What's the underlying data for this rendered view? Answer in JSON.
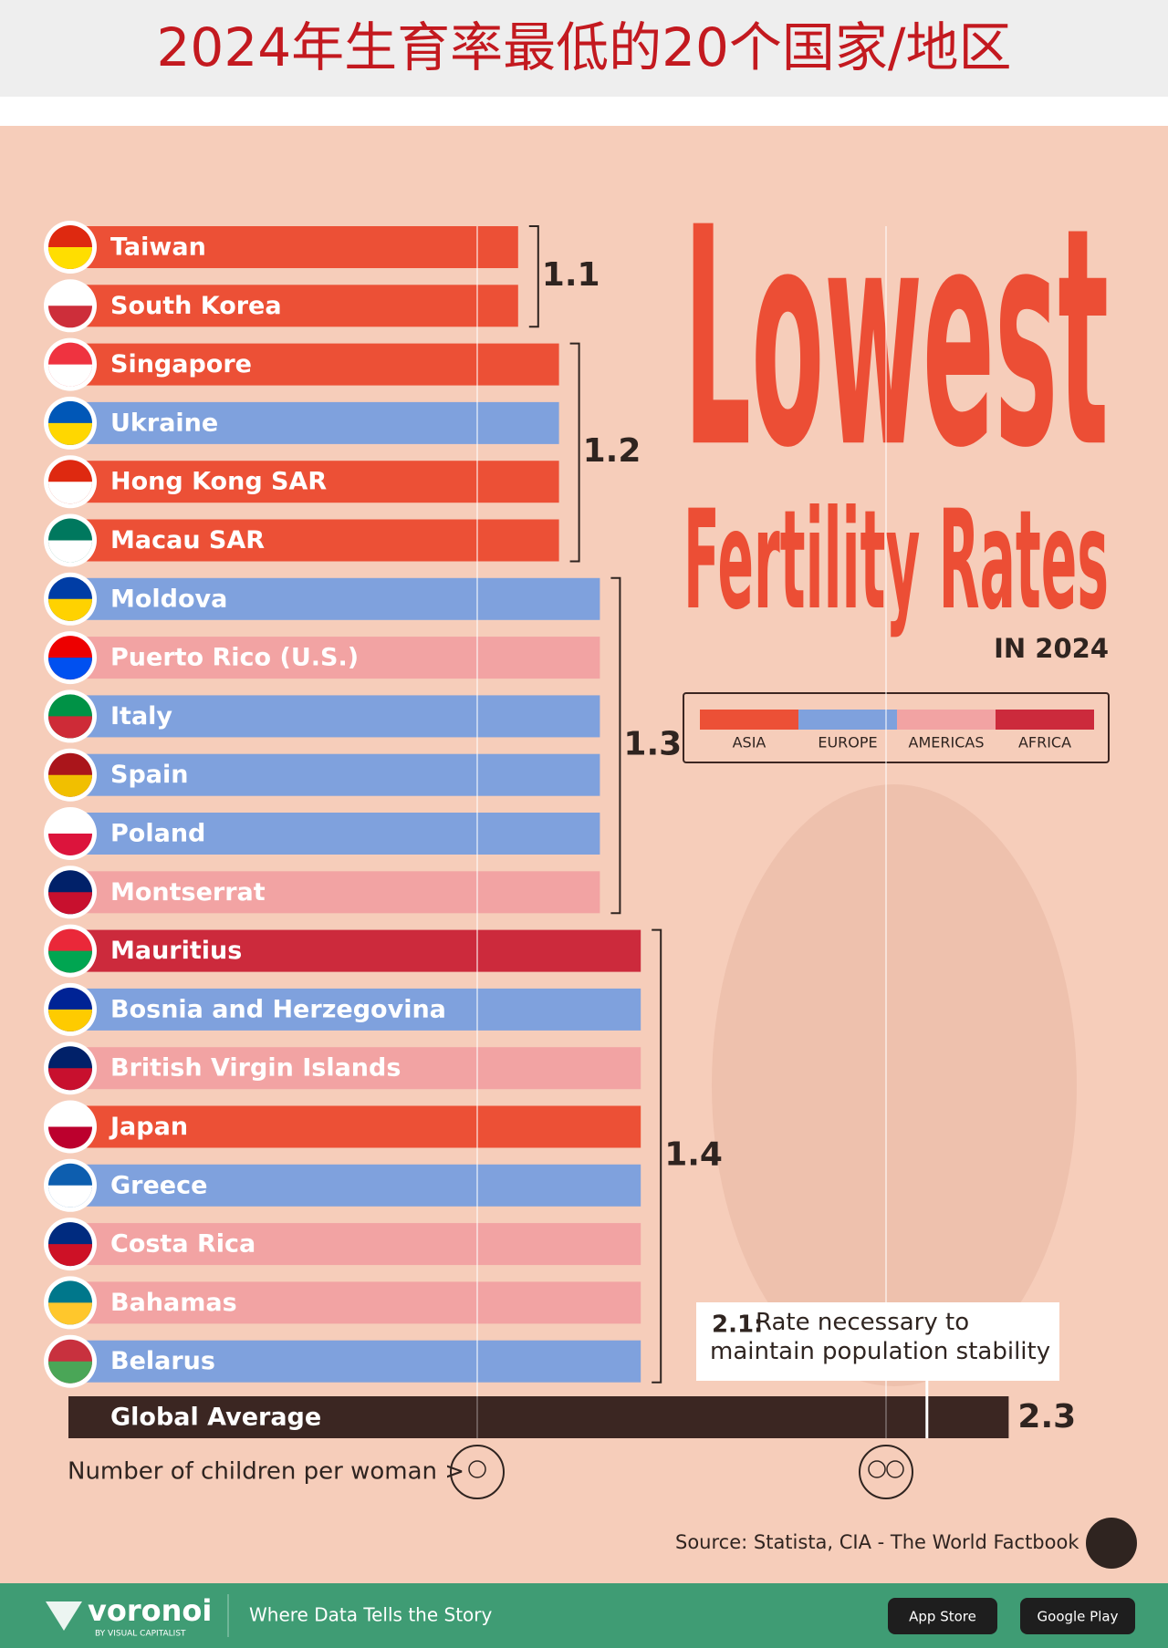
{
  "header": {
    "title": "2024年生育率最低的20个国家/地区"
  },
  "chart_data": {
    "type": "bar",
    "title": "Lowest",
    "title_line2": "Fertility Rates",
    "subtitle": "IN 2024",
    "categories": [
      "Taiwan",
      "South Korea",
      "Singapore",
      "Ukraine",
      "Hong Kong SAR",
      "Macau SAR",
      "Moldova",
      "Puerto Rico (U.S.)",
      "Italy",
      "Spain",
      "Poland",
      "Montserrat",
      "Mauritius",
      "Bosnia and Herzegovina",
      "British Virgin Islands",
      "Japan",
      "Greece",
      "Costa Rica",
      "Bahamas",
      "Belarus"
    ],
    "values": [
      1.1,
      1.1,
      1.2,
      1.2,
      1.2,
      1.2,
      1.3,
      1.3,
      1.3,
      1.3,
      1.3,
      1.3,
      1.4,
      1.4,
      1.4,
      1.4,
      1.4,
      1.4,
      1.4,
      1.4
    ],
    "regions": [
      "ASIA",
      "ASIA",
      "ASIA",
      "EUROPE",
      "ASIA",
      "ASIA",
      "EUROPE",
      "AMERICAS",
      "EUROPE",
      "EUROPE",
      "EUROPE",
      "AMERICAS",
      "AFRICA",
      "EUROPE",
      "AMERICAS",
      "ASIA",
      "EUROPE",
      "AMERICAS",
      "AMERICAS",
      "EUROPE"
    ],
    "legend": [
      {
        "name": "ASIA",
        "color": "#ec5036"
      },
      {
        "name": "EUROPE",
        "color": "#7fa1dd"
      },
      {
        "name": "AMERICAS",
        "color": "#f2a3a3"
      },
      {
        "name": "AFRICA",
        "color": "#cc2a3c"
      }
    ],
    "global_average": {
      "label": "Global Average",
      "value": 2.3,
      "color": "#3b2622"
    },
    "reference": {
      "value": 2.1,
      "label": "2.1:",
      "text": "Rate necessary to maintain population stability"
    },
    "xlim": [
      0,
      2.5
    ],
    "xticks": [
      1,
      2
    ],
    "x_label": "Number of children per woman >",
    "source": "Source: Statista,  CIA - The World Factbook"
  },
  "footer": {
    "brand": "voronoi",
    "brand_sub": "BY VISUAL CAPITALIST",
    "tagline": "Where Data Tells the Story",
    "app_store": "App Store",
    "google_play": "Google Play"
  }
}
